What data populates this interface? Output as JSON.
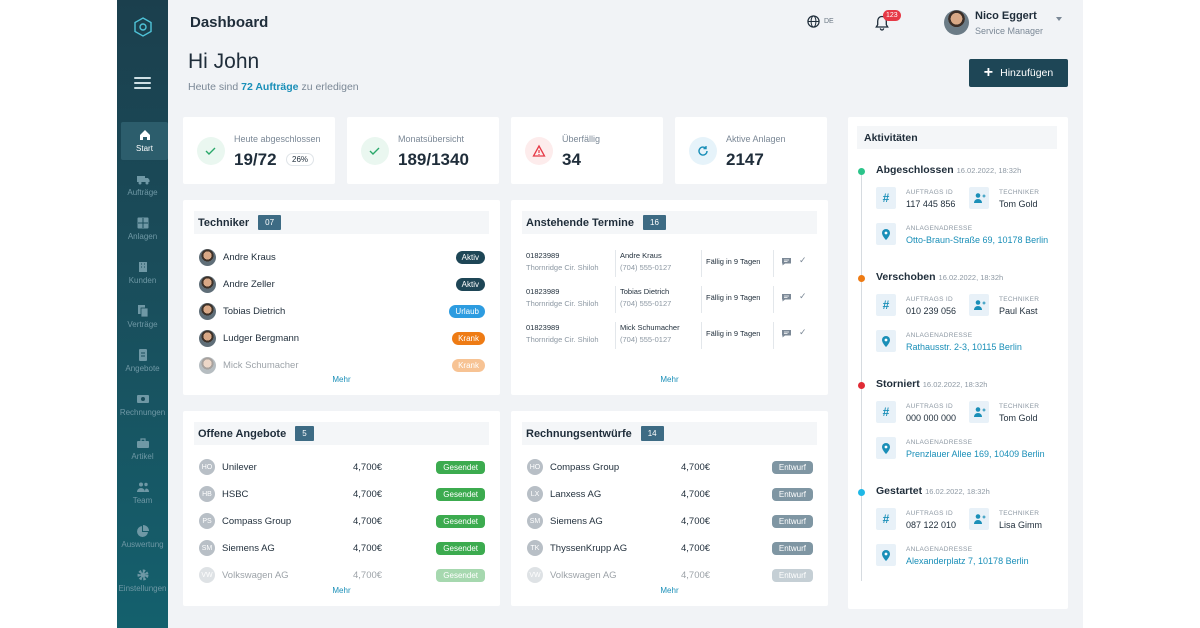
{
  "header": {
    "title": "Dashboard",
    "lang": "DE",
    "notifications": "123",
    "user": {
      "name": "Nico Eggert",
      "role": "Service Manager"
    }
  },
  "sidebar": {
    "items": [
      {
        "label": "Start",
        "icon": "home-icon",
        "active": true
      },
      {
        "label": "Aufträge",
        "icon": "truck-icon"
      },
      {
        "label": "Anlagen",
        "icon": "grid-icon"
      },
      {
        "label": "Kunden",
        "icon": "building-icon"
      },
      {
        "label": "Verträge",
        "icon": "documents-icon"
      },
      {
        "label": "Angebote",
        "icon": "invoice-icon"
      },
      {
        "label": "Rechnungen",
        "icon": "cash-icon"
      },
      {
        "label": "Artikel",
        "icon": "toolbox-icon"
      },
      {
        "label": "Team",
        "icon": "team-icon"
      },
      {
        "label": "Auswertung",
        "icon": "pie-chart-icon"
      },
      {
        "label": "Einstellungen",
        "icon": "gear-icon"
      }
    ]
  },
  "greeting": {
    "title": "Hi John",
    "sub_pre": "Heute sind",
    "sub_link": "72 Aufträge",
    "sub_post": "zu erledigen"
  },
  "add_button": "Hinzufügen",
  "stats": [
    {
      "label": "Heute abgeschlossen",
      "value": "19/72",
      "badge": "26%",
      "color": "#2aa86a"
    },
    {
      "label": "Monatsübersicht",
      "value": "189/1340",
      "color": "#2aa86a"
    },
    {
      "label": "Überfällig",
      "value": "34",
      "color": "#e63946"
    },
    {
      "label": "Aktive Anlagen",
      "value": "2147",
      "color": "#1a8fb8"
    }
  ],
  "techniker": {
    "title": "Techniker",
    "count": "07",
    "more": "Mehr",
    "rows": [
      {
        "name": "Andre Kraus",
        "status": "Aktiv",
        "color": "#1e4656"
      },
      {
        "name": "Andre Zeller",
        "status": "Aktiv",
        "color": "#1e4656"
      },
      {
        "name": "Tobias Dietrich",
        "status": "Urlaub",
        "color": "#2d9ce0"
      },
      {
        "name": "Ludger Bergmann",
        "status": "Krank",
        "color": "#ee7b14"
      },
      {
        "name": "Mick Schumacher",
        "status": "Krank",
        "color": "#ee7b14"
      }
    ]
  },
  "termine": {
    "title": "Anstehende Termine",
    "count": "16",
    "more": "Mehr",
    "rows": [
      {
        "id": "01823989",
        "addr": "Thornridge Cir. Shiloh",
        "name": "Andre Kraus",
        "phone": "(704) 555-0127",
        "due": "Fällig in 9 Tagen"
      },
      {
        "id": "01823989",
        "addr": "Thornridge Cir. Shiloh",
        "name": "Tobias Dietrich",
        "phone": "(704) 555-0127",
        "due": "Fällig in 9 Tagen"
      },
      {
        "id": "01823989",
        "addr": "Thornridge Cir. Shiloh",
        "name": "Mick Schumacher",
        "phone": "(704) 555-0127",
        "due": "Fällig in 9 Tagen"
      }
    ]
  },
  "angebote": {
    "title": "Offene Angebote",
    "count": "5",
    "more": "Mehr",
    "rows": [
      {
        "initials": "HO",
        "name": "Unilever",
        "amount": "4,700€",
        "status": "Gesendet"
      },
      {
        "initials": "HB",
        "name": "HSBC",
        "amount": "4,700€",
        "status": "Gesendet"
      },
      {
        "initials": "PS",
        "name": "Compass Group",
        "amount": "4,700€",
        "status": "Gesendet"
      },
      {
        "initials": "SM",
        "name": "Siemens AG",
        "amount": "4,700€",
        "status": "Gesendet"
      },
      {
        "initials": "VW",
        "name": "Volkswagen AG",
        "amount": "4,700€",
        "status": "Gesendet"
      }
    ]
  },
  "rechnungen": {
    "title": "Rechnungsentwürfe",
    "count": "14",
    "more": "Mehr",
    "rows": [
      {
        "initials": "HO",
        "name": "Compass Group",
        "amount": "4,700€",
        "status": "Entwurf"
      },
      {
        "initials": "LX",
        "name": "Lanxess AG",
        "amount": "4,700€",
        "status": "Entwurf"
      },
      {
        "initials": "SM",
        "name": "Siemens AG",
        "amount": "4,700€",
        "status": "Entwurf"
      },
      {
        "initials": "TK",
        "name": "ThyssenKrupp AG",
        "amount": "4,700€",
        "status": "Entwurf"
      },
      {
        "initials": "VW",
        "name": "Volkswagen AG",
        "amount": "4,700€",
        "status": "Entwurf"
      }
    ]
  },
  "activities": {
    "title": "Aktivitäten",
    "labels": {
      "order": "AUFTRAGS ID",
      "tech": "TECHNIKER",
      "addr": "ANLAGENADRESSE"
    },
    "events": [
      {
        "title": "Abgeschlossen",
        "time": "16.02.2022, 18:32h",
        "color": "#2bc48a",
        "order": "117 445 856",
        "tech": "Tom Gold",
        "addr": "Otto-Braun-Straße 69, 10178 Berlin"
      },
      {
        "title": "Verschoben",
        "time": "16.02.2022, 18:32h",
        "color": "#ee7b14",
        "order": "010 239 056",
        "tech": "Paul Kast",
        "addr": "Rathausstr. 2-3, 10115 Berlin"
      },
      {
        "title": "Storniert",
        "time": "16.02.2022, 18:32h",
        "color": "#e02b35",
        "order": "000 000 000",
        "tech": "Tom Gold",
        "addr": "Prenzlauer Allee 169, 10409 Berlin"
      },
      {
        "title": "Gestartet",
        "time": "16.02.2022, 18:32h",
        "color": "#1fb8e6",
        "order": "087 122 010",
        "tech": "Lisa Gimm",
        "addr": "Alexanderplatz 7, 10178 Berlin"
      }
    ]
  }
}
